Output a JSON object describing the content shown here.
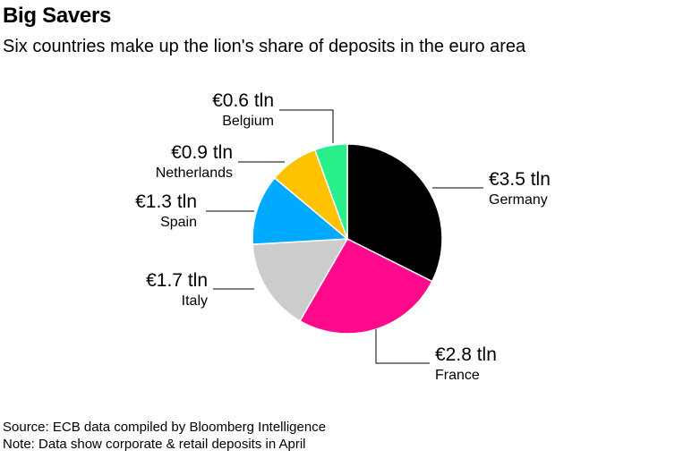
{
  "title": "Big Savers",
  "subtitle": "Six countries make up the lion's share of deposits in the euro area",
  "footer": {
    "source": "Source: ECB data compiled by Bloomberg Intelligence",
    "note": "Note: Data show corporate & retail deposits in April"
  },
  "chart_data": {
    "type": "pie",
    "unit": "€ tln",
    "start": "12 o'clock, clockwise",
    "slices": [
      {
        "name": "Germany",
        "value": 3.5,
        "label": "€3.5 tln",
        "color": "#000000"
      },
      {
        "name": "France",
        "value": 2.8,
        "label": "€2.8 tln",
        "color": "#ff0a8c"
      },
      {
        "name": "Italy",
        "value": 1.7,
        "label": "€1.7 tln",
        "color": "#cccccc"
      },
      {
        "name": "Spain",
        "value": 1.3,
        "label": "€1.3 tln",
        "color": "#00aaff"
      },
      {
        "name": "Netherlands",
        "value": 0.9,
        "label": "€0.9 tln",
        "color": "#ffc200"
      },
      {
        "name": "Belgium",
        "value": 0.6,
        "label": "€0.6 tln",
        "color": "#29ef8a"
      }
    ]
  }
}
